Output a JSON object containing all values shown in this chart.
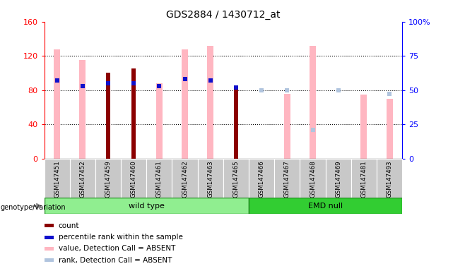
{
  "title": "GDS2884 / 1430712_at",
  "samples": [
    "GSM147451",
    "GSM147452",
    "GSM147459",
    "GSM147460",
    "GSM147461",
    "GSM147462",
    "GSM147463",
    "GSM147465",
    "GSM147466",
    "GSM147467",
    "GSM147468",
    "GSM147469",
    "GSM147481",
    "GSM147493"
  ],
  "wt_count": 8,
  "emd_count": 6,
  "sample_data": {
    "GSM147451": {
      "pink_value": 128,
      "light_blue_rank": null,
      "red_count": null,
      "blue_rank": 57
    },
    "GSM147452": {
      "pink_value": 115,
      "light_blue_rank": null,
      "red_count": null,
      "blue_rank": 53
    },
    "GSM147459": {
      "pink_value": null,
      "light_blue_rank": null,
      "red_count": 100,
      "blue_rank": 55
    },
    "GSM147460": {
      "pink_value": null,
      "light_blue_rank": null,
      "red_count": 105,
      "blue_rank": 55
    },
    "GSM147461": {
      "pink_value": 88,
      "light_blue_rank": null,
      "red_count": null,
      "blue_rank": 53
    },
    "GSM147462": {
      "pink_value": 128,
      "light_blue_rank": null,
      "red_count": null,
      "blue_rank": 58
    },
    "GSM147463": {
      "pink_value": 132,
      "light_blue_rank": null,
      "red_count": null,
      "blue_rank": 57
    },
    "GSM147465": {
      "pink_value": null,
      "light_blue_rank": null,
      "red_count": 82,
      "blue_rank": 52
    },
    "GSM147466": {
      "pink_value": null,
      "light_blue_rank": 50,
      "red_count": null,
      "blue_rank": null
    },
    "GSM147467": {
      "pink_value": 76,
      "light_blue_rank": 50,
      "red_count": null,
      "blue_rank": null
    },
    "GSM147468": {
      "pink_value": 132,
      "light_blue_rank": 21,
      "red_count": null,
      "blue_rank": null
    },
    "GSM147469": {
      "pink_value": null,
      "light_blue_rank": 50,
      "red_count": null,
      "blue_rank": null
    },
    "GSM147481": {
      "pink_value": 75,
      "light_blue_rank": null,
      "red_count": null,
      "blue_rank": null
    },
    "GSM147493": {
      "pink_value": 70,
      "light_blue_rank": 47,
      "red_count": null,
      "blue_rank": null
    }
  },
  "ylim_left": [
    0,
    160
  ],
  "ylim_right": [
    0,
    100
  ],
  "yticks_left": [
    0,
    40,
    80,
    120,
    160
  ],
  "yticks_right": [
    0,
    25,
    50,
    75,
    100
  ],
  "color_red": "#8B0000",
  "color_blue": "#1010CC",
  "color_pink": "#FFB6C1",
  "color_lightblue": "#B0C4DE",
  "color_gray_bg": "#C8C8C8",
  "pink_bar_width": 0.25,
  "red_bar_width": 0.18,
  "marker_size": 5
}
